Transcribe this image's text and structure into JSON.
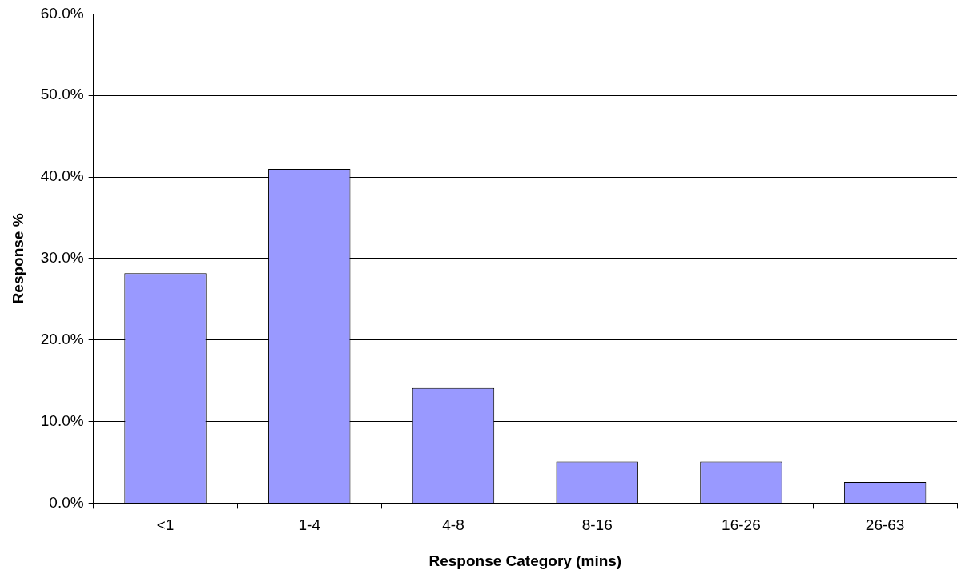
{
  "chart_data": {
    "type": "bar",
    "xlabel": "Response Category (mins)",
    "ylabel": "Response %",
    "categories": [
      "<1",
      "1-4",
      "4-8",
      "8-16",
      "16-26",
      "26-63"
    ],
    "values": [
      28.2,
      41.0,
      14.1,
      5.1,
      5.1,
      2.6
    ],
    "color": "#9999ff",
    "ylim": [
      0,
      60
    ],
    "yticks": [
      {
        "value": 0,
        "label": "0.0%"
      },
      {
        "value": 10,
        "label": "10.0%"
      },
      {
        "value": 20,
        "label": "20.0%"
      },
      {
        "value": 30,
        "label": "30.0%"
      },
      {
        "value": 40,
        "label": "40.0%"
      },
      {
        "value": 50,
        "label": "50.0%"
      },
      {
        "value": 60,
        "label": "60.0%"
      }
    ],
    "grid": "y",
    "legend": false
  }
}
